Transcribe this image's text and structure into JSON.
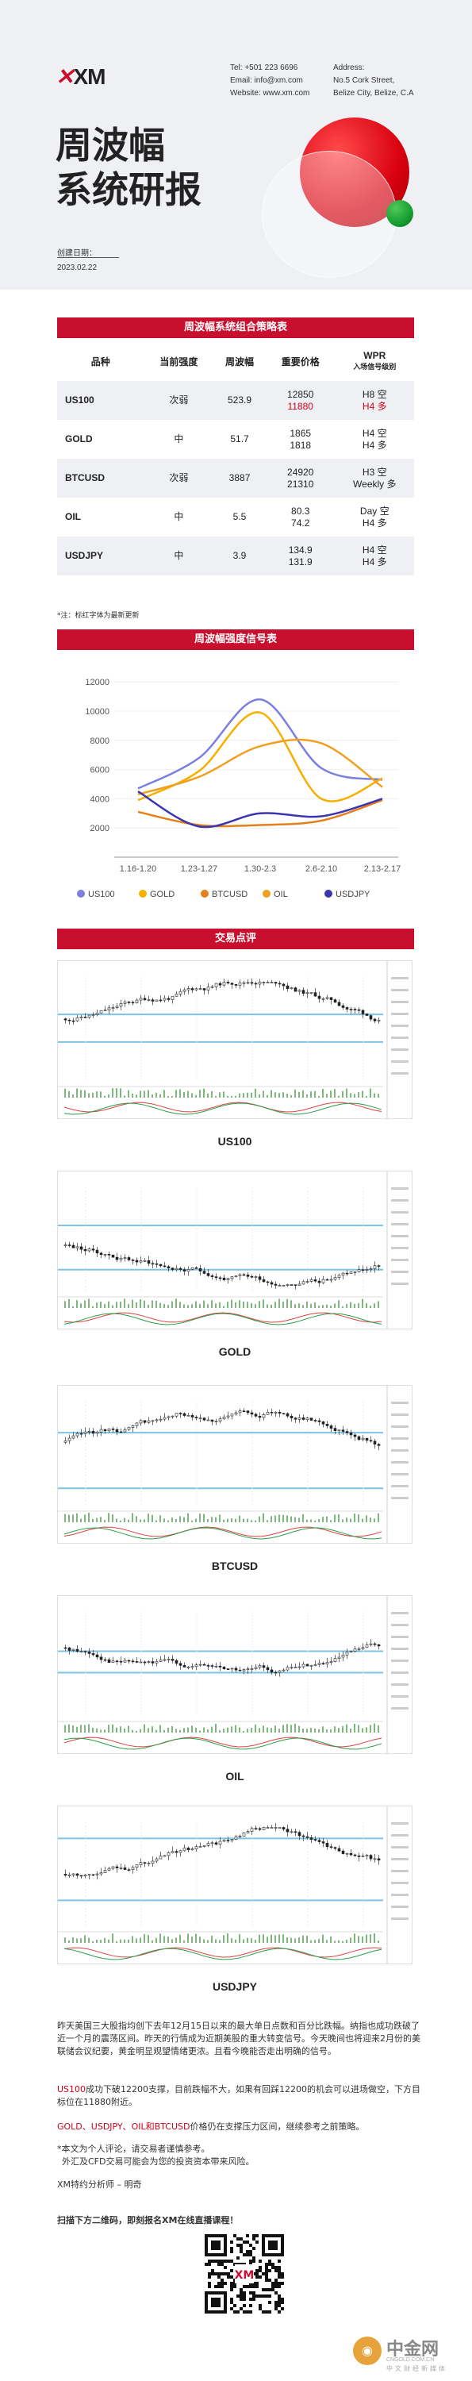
{
  "header": {
    "logo_text": "XM",
    "phone": "Tel: +501 223 6696",
    "email": "Email: info@xm.com",
    "website": "Website: www.xm.com",
    "address_label": "Address:",
    "address_line1": "No.5 Cork Street,",
    "address_line2": "Belize City, Belize, C.A",
    "title_line1": "周波幅",
    "title_line2": "系统研报",
    "date_label": "创建日期：",
    "date_value": "2023.02.22"
  },
  "strategy_table": {
    "section_title": "周波幅系统组合策略表",
    "headers": [
      "品种",
      "当前强度",
      "周波幅",
      "重要价格",
      "WPR"
    ],
    "wpr_sub": "入场信号级别",
    "rows": [
      {
        "symbol": "US100",
        "strength": "次弱",
        "strength_red": true,
        "range": "523.9",
        "price_hi": "12850",
        "price_lo": "11880",
        "price_lo_red": true,
        "wpr1": "H8 空",
        "wpr2": "H4 多",
        "wpr2_red": true
      },
      {
        "symbol": "GOLD",
        "strength": "中",
        "strength_red": false,
        "range": "51.7",
        "price_hi": "1865",
        "price_lo": "1818",
        "price_lo_red": false,
        "wpr1": "H4 空",
        "wpr2": "H4 多",
        "wpr2_red": false
      },
      {
        "symbol": "BTCUSD",
        "strength": "次弱",
        "strength_red": true,
        "range": "3887",
        "price_hi": "24920",
        "price_lo": "21310",
        "price_lo_red": false,
        "wpr1": "H3 空",
        "wpr2": "Weekly 多",
        "wpr2_red": false
      },
      {
        "symbol": "OIL",
        "strength": "中",
        "strength_red": false,
        "range": "5.5",
        "price_hi": "80.3",
        "price_lo": "74.2",
        "price_lo_red": false,
        "wpr1": "Day 空",
        "wpr2": "H4 多",
        "wpr2_red": false
      },
      {
        "symbol": "USDJPY",
        "strength": "中",
        "strength_red": false,
        "range": "3.9",
        "price_hi": "134.9",
        "price_lo": "131.9",
        "price_lo_red": false,
        "wpr1": "H4 空",
        "wpr2": "H4 多",
        "wpr2_red": false
      }
    ],
    "note": "*注：标红字体为最新更新"
  },
  "signal_section_title": "周波幅强度信号表",
  "chart_data": {
    "type": "line",
    "categories": [
      "1.16-1.20",
      "1.23-1.27",
      "1.30-2.3",
      "2.6-2.10",
      "2.13-2.17"
    ],
    "yticks": [
      2000,
      4000,
      6000,
      8000,
      10000,
      12000
    ],
    "ylim": [
      0,
      12500
    ],
    "series": [
      {
        "name": "US100",
        "color": "#7b7fe0",
        "values": [
          4700,
          6800,
          10800,
          6100,
          5300
        ]
      },
      {
        "name": "GOLD",
        "color": "#f5b000",
        "values": [
          3900,
          5900,
          9900,
          4000,
          5400
        ]
      },
      {
        "name": "BTCUSD",
        "color": "#e3801c",
        "values": [
          3100,
          2200,
          2200,
          2500,
          3900
        ]
      },
      {
        "name": "OIL",
        "color": "#f0a020",
        "values": [
          4300,
          5500,
          7600,
          7800,
          4800
        ]
      },
      {
        "name": "USDJPY",
        "color": "#3b35b0",
        "values": [
          4500,
          2100,
          3000,
          2800,
          4000
        ]
      }
    ],
    "legend_position": "bottom"
  },
  "trade_section_title": "交易点评",
  "trade_charts": [
    {
      "label": "US100"
    },
    {
      "label": "GOLD"
    },
    {
      "label": "BTCUSD"
    },
    {
      "label": "OIL"
    },
    {
      "label": "USDJPY"
    }
  ],
  "commentary": {
    "p1": "昨天美国三大股指均创下去年12月15日以来的最大单日点数和百分比跌幅。纳指也成功跌破了近一个月的震荡区间。昨天的行情成为近期美股的重大转变信号。今天晚间也将迎来2月份的美联储会议纪要，黄金明显观望情绪更浓。且看今晚能否走出明确的信号。",
    "p2_red": "US100",
    "p2": "成功下破12200支撑，目前跌幅不大，如果有回踩12200的机会可以进场做空，下方目标位在11880附近。",
    "p3_red": "GOLD、USDJPY、OIL和BTCUSD",
    "p3": "价格仍在支撑压力区间，继续参考之前策略。",
    "p4": "*本文为个人评论，请交易者谨慎参考。",
    "p5": "外汇及CFD交易可能会为您的投资资本带来风险。",
    "author": "XM特约分析师 – 明奇",
    "qr_prompt": "扫描下方二维码，即刻报名XM在线直播课程！"
  },
  "watermark": {
    "text": "中金网",
    "url": "CNGOLD.COM.CN",
    "sub": "中文财经新媒体"
  }
}
